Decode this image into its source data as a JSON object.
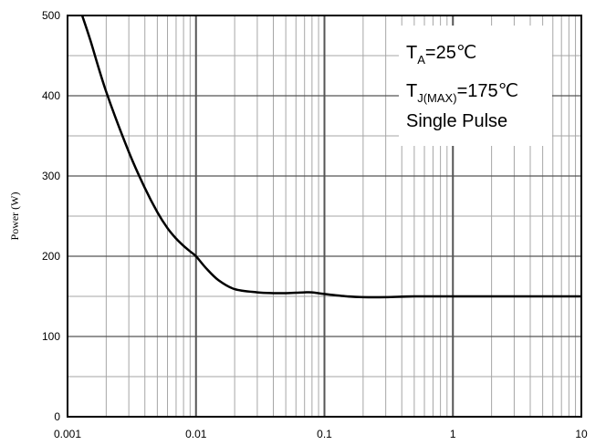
{
  "chart_data": {
    "type": "line",
    "title": "",
    "xlabel": "",
    "ylabel": "Power (W)",
    "xscale": "log",
    "xlim": [
      0.001,
      10
    ],
    "ylim": [
      0,
      500
    ],
    "grid": true,
    "x_ticks": [
      "0.001",
      "0.01",
      "0.1",
      "1",
      "10"
    ],
    "y_ticks": [
      "0",
      "100",
      "200",
      "300",
      "400",
      "500"
    ],
    "series": [
      {
        "color": "#000000",
        "x": [
          0.0013,
          0.0015,
          0.002,
          0.003,
          0.004,
          0.005,
          0.006,
          0.007,
          0.008,
          0.009,
          0.01,
          0.012,
          0.015,
          0.02,
          0.03,
          0.04,
          0.05,
          0.06,
          0.07,
          0.08,
          0.1,
          0.15,
          0.2,
          0.3,
          0.5,
          1,
          2,
          5,
          10
        ],
        "y": [
          500,
          470,
          405,
          330,
          285,
          255,
          235,
          222,
          213,
          206,
          200,
          185,
          170,
          159,
          155,
          154,
          154,
          154.5,
          155,
          155,
          153,
          150,
          149,
          149,
          150,
          150,
          150,
          150,
          150
        ]
      }
    ],
    "annotation": {
      "line1": {
        "main": "T",
        "sub": "A",
        "rest": "=25℃"
      },
      "line2": {
        "main": "T",
        "sub": "J(MAX)",
        "rest": "=175℃"
      },
      "line3": "Single Pulse"
    }
  }
}
